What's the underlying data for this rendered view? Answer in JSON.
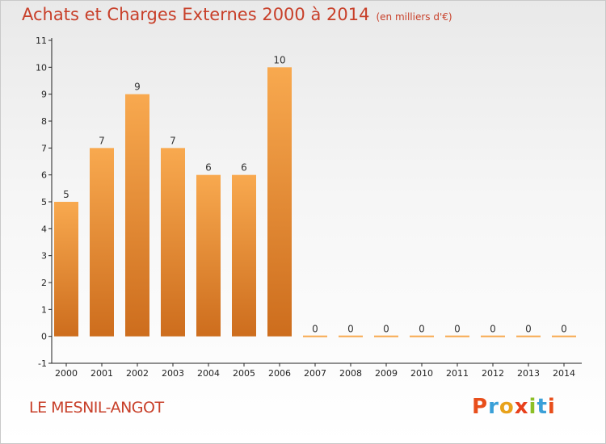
{
  "header": {
    "title": "Achats et Charges Externes 2000 à 2014",
    "unit": "(en milliers d'€)"
  },
  "footer": {
    "commune": "LE MESNIL-ANGOT",
    "logo_text": "Proxiti"
  },
  "colors": {
    "bar_light": "#f8a94f",
    "bar_dark": "#cd6d1d",
    "title": "#c8402a",
    "axis": "#222222"
  },
  "chart_data": {
    "type": "bar",
    "categories": [
      "2000",
      "2001",
      "2002",
      "2003",
      "2004",
      "2005",
      "2006",
      "2007",
      "2008",
      "2009",
      "2010",
      "2011",
      "2012",
      "2013",
      "2014"
    ],
    "values": [
      5,
      7,
      9,
      7,
      6,
      6,
      10,
      0,
      0,
      0,
      0,
      0,
      0,
      0,
      0
    ],
    "y_tick_labels": [
      "-1",
      "0",
      "1",
      "2",
      "3",
      "4",
      "5",
      "6",
      "7",
      "8",
      "9",
      "10",
      "11"
    ],
    "ylim": [
      -1,
      11
    ],
    "grid": false,
    "legend": "none"
  }
}
